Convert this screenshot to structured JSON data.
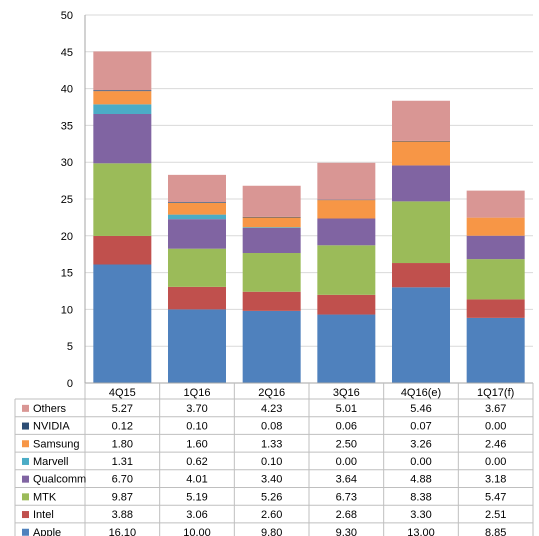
{
  "chart_data": {
    "type": "bar",
    "stacked": true,
    "categories": [
      "4Q15",
      "1Q16",
      "2Q16",
      "3Q16",
      "4Q16(e)",
      "1Q17(f)"
    ],
    "ylim": [
      0,
      50
    ],
    "yticks": [
      0,
      5,
      10,
      15,
      20,
      25,
      30,
      35,
      40,
      45,
      50
    ],
    "grid": true,
    "legend_placement": "data-table-left",
    "series": [
      {
        "name": "Apple",
        "color": "#4f81bd",
        "values": [
          16.1,
          10.0,
          9.8,
          9.3,
          13.0,
          8.85
        ],
        "labels": [
          "16.10",
          "10.00",
          "9.80",
          "9.30",
          "13.00",
          "8.85"
        ]
      },
      {
        "name": "Intel",
        "color": "#c0504d",
        "values": [
          3.88,
          3.06,
          2.6,
          2.68,
          3.3,
          2.51
        ],
        "labels": [
          "3.88",
          "3.06",
          "2.60",
          "2.68",
          "3.30",
          "2.51"
        ]
      },
      {
        "name": "MTK",
        "color": "#9bbb59",
        "values": [
          9.87,
          5.19,
          5.26,
          6.73,
          8.38,
          5.47
        ],
        "labels": [
          "9.87",
          "5.19",
          "5.26",
          "6.73",
          "8.38",
          "5.47"
        ]
      },
      {
        "name": "Qualcomm",
        "color": "#8064a2",
        "values": [
          6.7,
          4.01,
          3.4,
          3.64,
          4.88,
          3.18
        ],
        "labels": [
          "6.70",
          "4.01",
          "3.40",
          "3.64",
          "4.88",
          "3.18"
        ]
      },
      {
        "name": "Marvell",
        "color": "#4bacc6",
        "values": [
          1.31,
          0.62,
          0.1,
          0.0,
          0.0,
          0.0
        ],
        "labels": [
          "1.31",
          "0.62",
          "0.10",
          "0.00",
          "0.00",
          "0.00"
        ]
      },
      {
        "name": "Samsung",
        "color": "#f79646",
        "values": [
          1.8,
          1.6,
          1.33,
          2.5,
          3.26,
          2.46
        ],
        "labels": [
          "1.80",
          "1.60",
          "1.33",
          "2.50",
          "3.26",
          "2.46"
        ]
      },
      {
        "name": "NVIDIA",
        "color": "#2c4d75",
        "values": [
          0.12,
          0.1,
          0.08,
          0.06,
          0.07,
          0.0
        ],
        "labels": [
          "0.12",
          "0.10",
          "0.08",
          "0.06",
          "0.07",
          "0.00"
        ]
      },
      {
        "name": "Others",
        "color": "#d99694",
        "values": [
          5.27,
          3.7,
          4.23,
          5.01,
          5.46,
          3.67
        ],
        "labels": [
          "5.27",
          "3.70",
          "4.23",
          "5.01",
          "5.46",
          "3.67"
        ]
      }
    ],
    "table_row_order": [
      "Others",
      "NVIDIA",
      "Samsung",
      "Marvell",
      "Qualcomm",
      "MTK",
      "Intel",
      "Apple"
    ]
  }
}
